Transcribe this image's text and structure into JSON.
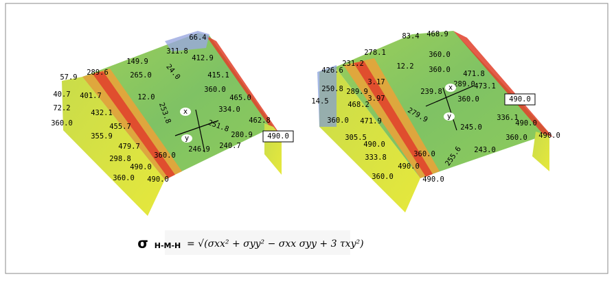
{
  "left_plot": {
    "labels": [
      "66.4",
      "311.8",
      "412.9",
      "149.9",
      "57.9",
      "289.6",
      "265.0",
      "24.0",
      "415.1",
      "40.7",
      "401.7",
      "12.0",
      "360.0",
      "465.0",
      "72.2",
      "432.1",
      "253.8",
      "334.0",
      "462.8",
      "360.0",
      "455.7",
      "251.8",
      "280.9",
      "490.0",
      "355.9",
      "479.7",
      "246.9",
      "240.7",
      "298.8",
      "360.0",
      "490.0",
      "360.0",
      "490.0"
    ],
    "axis_x": "x",
    "axis_y": "y"
  },
  "right_plot": {
    "labels": [
      "83.4",
      "468.9",
      "278.1",
      "360.0",
      "426.6",
      "231.2",
      "12.2",
      "360.0",
      "471.8",
      "250.8",
      "3.17",
      "289.0",
      "473.1",
      "289.9",
      "239.8",
      "14.5",
      "3.97",
      "360.0",
      "490.0",
      "468.2",
      "279.9",
      "336.1",
      "360.0",
      "471.9",
      "245.0",
      "490.0",
      "305.5",
      "490.0",
      "360.0",
      "490.0",
      "360.0",
      "333.8",
      "255.6",
      "243.0",
      "490.0",
      "360.0",
      "490.0"
    ],
    "axis_x": "x",
    "axis_y": "y"
  },
  "formula": {
    "symbol": "σ",
    "subscript": "H-M-H",
    "expression": "= √(σxx² + σyy² − σxx σyy + 3 τxy²)"
  }
}
